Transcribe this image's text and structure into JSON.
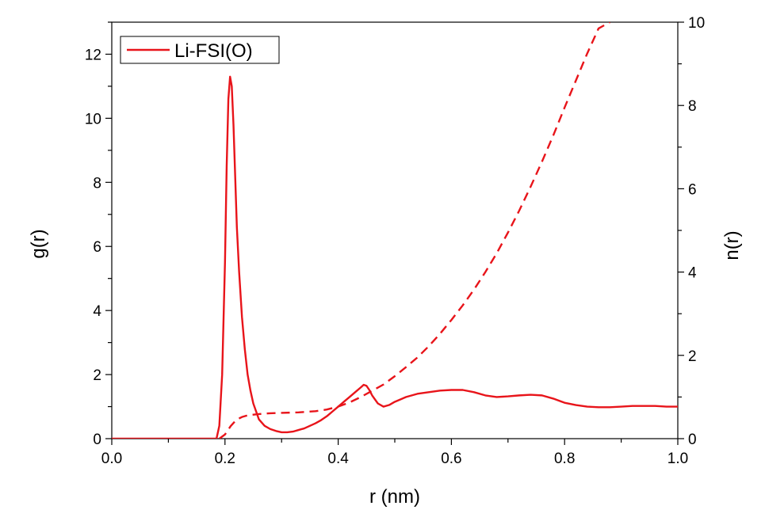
{
  "chart_data": {
    "type": "line",
    "xlabel": "r (nm)",
    "ylabel_left": "g(r)",
    "ylabel_right": "n(r)",
    "xlim": [
      0.0,
      1.0
    ],
    "ylim_left": [
      0,
      13
    ],
    "ylim_right": [
      0,
      10
    ],
    "xticks": [
      "0.0",
      "0.2",
      "0.4",
      "0.6",
      "0.8",
      "1.0"
    ],
    "yticks_left": [
      "0",
      "2",
      "4",
      "6",
      "8",
      "10",
      "12"
    ],
    "yticks_right": [
      "0",
      "2",
      "4",
      "6",
      "8",
      "10"
    ],
    "legend": {
      "label": "Li-FSI(O)",
      "position": "top-left"
    },
    "color": "#e8141a",
    "series": [
      {
        "name": "Li-FSI(O)",
        "axis": "left",
        "style": "solid",
        "x": [
          0.0,
          0.185,
          0.19,
          0.195,
          0.2,
          0.203,
          0.206,
          0.209,
          0.212,
          0.215,
          0.218,
          0.221,
          0.225,
          0.23,
          0.235,
          0.24,
          0.245,
          0.25,
          0.26,
          0.27,
          0.28,
          0.29,
          0.3,
          0.31,
          0.32,
          0.33,
          0.34,
          0.35,
          0.36,
          0.37,
          0.38,
          0.39,
          0.4,
          0.41,
          0.42,
          0.43,
          0.44,
          0.445,
          0.45,
          0.455,
          0.46,
          0.47,
          0.48,
          0.49,
          0.5,
          0.52,
          0.54,
          0.56,
          0.58,
          0.6,
          0.62,
          0.64,
          0.66,
          0.68,
          0.7,
          0.72,
          0.74,
          0.76,
          0.78,
          0.8,
          0.82,
          0.84,
          0.86,
          0.88,
          0.9,
          0.92,
          0.94,
          0.96,
          0.98,
          1.0
        ],
        "y": [
          0.0,
          0.0,
          0.4,
          2.0,
          5.5,
          8.5,
          10.6,
          11.3,
          11.0,
          9.8,
          8.2,
          6.6,
          5.2,
          3.8,
          2.8,
          2.0,
          1.5,
          1.1,
          0.6,
          0.4,
          0.3,
          0.24,
          0.2,
          0.2,
          0.22,
          0.27,
          0.32,
          0.4,
          0.48,
          0.58,
          0.7,
          0.85,
          1.0,
          1.15,
          1.3,
          1.45,
          1.6,
          1.68,
          1.65,
          1.52,
          1.35,
          1.1,
          1.0,
          1.05,
          1.15,
          1.3,
          1.4,
          1.45,
          1.5,
          1.52,
          1.52,
          1.45,
          1.35,
          1.3,
          1.32,
          1.35,
          1.37,
          1.35,
          1.25,
          1.12,
          1.05,
          1.0,
          0.98,
          0.98,
          1.0,
          1.02,
          1.02,
          1.02,
          1.0,
          1.0
        ]
      },
      {
        "name": "n(r)",
        "axis": "right",
        "style": "dashed",
        "x": [
          0.19,
          0.2,
          0.21,
          0.22,
          0.23,
          0.24,
          0.26,
          0.28,
          0.3,
          0.33,
          0.36,
          0.38,
          0.4,
          0.42,
          0.44,
          0.46,
          0.48,
          0.5,
          0.52,
          0.54,
          0.56,
          0.58,
          0.6,
          0.62,
          0.64,
          0.66,
          0.68,
          0.7,
          0.72,
          0.74,
          0.76,
          0.78,
          0.8,
          0.82,
          0.84,
          0.86,
          0.88
        ],
        "y": [
          0.0,
          0.1,
          0.3,
          0.45,
          0.52,
          0.56,
          0.59,
          0.61,
          0.62,
          0.63,
          0.66,
          0.7,
          0.77,
          0.87,
          1.0,
          1.15,
          1.3,
          1.5,
          1.72,
          1.95,
          2.22,
          2.52,
          2.85,
          3.2,
          3.58,
          4.0,
          4.45,
          4.95,
          5.48,
          6.05,
          6.65,
          7.28,
          7.95,
          8.6,
          9.25,
          9.85,
          10.0
        ]
      }
    ]
  }
}
